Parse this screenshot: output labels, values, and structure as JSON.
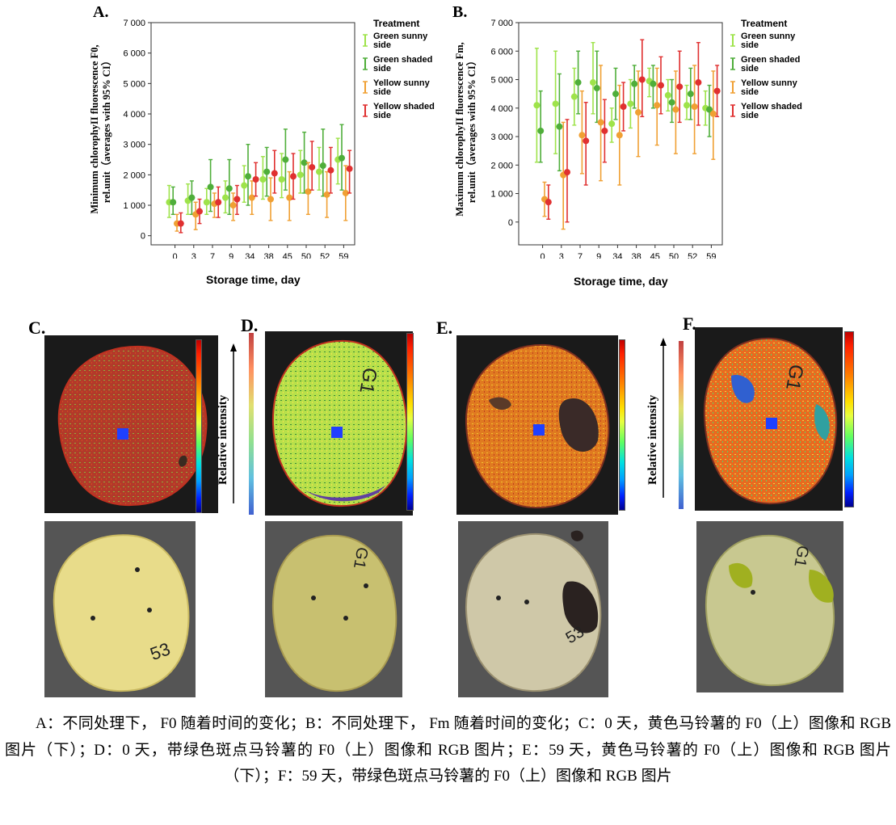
{
  "panel_labels": {
    "a": "A.",
    "b": "B.",
    "c": "C.",
    "d": "D.",
    "e": "E.",
    "f": "F."
  },
  "side_label": "Relative intensity",
  "chart_data": [
    {
      "type": "scatter",
      "panel": "A.",
      "ylabel_line1": "Minimum chlorophyII fluorescence F0,",
      "ylabel_line2": "rel.unit（averages with 95% CI）",
      "xlabel": "Storage time, day",
      "categories": [
        "0",
        "3",
        "7",
        "9",
        "34",
        "38",
        "45",
        "50",
        "52",
        "59"
      ],
      "yticks": [
        "0",
        "1 000",
        "2 000",
        "3 000",
        "4 000",
        "5 000",
        "6 000",
        "7 000"
      ],
      "ylim": [
        -300,
        7000
      ],
      "legend_title": "Treatment",
      "series": [
        {
          "name": "Green sunny side",
          "color": "#9ee34a",
          "values": [
            1100,
            1150,
            1100,
            1250,
            1650,
            1850,
            1850,
            2000,
            2100,
            2500
          ],
          "low": [
            600,
            700,
            700,
            750,
            1100,
            1200,
            1250,
            1400,
            1500,
            1700
          ],
          "high": [
            1650,
            1700,
            1550,
            1800,
            2300,
            2600,
            2700,
            2800,
            2900,
            3200
          ]
        },
        {
          "name": "Green shaded side",
          "color": "#4fae3a",
          "values": [
            1100,
            1250,
            1600,
            1550,
            1950,
            2100,
            2500,
            2400,
            2300,
            2550
          ],
          "low": [
            700,
            700,
            800,
            700,
            1000,
            1300,
            1500,
            1400,
            1300,
            1500
          ],
          "high": [
            1600,
            1800,
            2500,
            2500,
            3000,
            2900,
            3500,
            3400,
            3500,
            3650
          ]
        },
        {
          "name": "Yellow sunny side",
          "color": "#f0a033",
          "values": [
            400,
            700,
            1050,
            1000,
            1250,
            1200,
            1250,
            1450,
            1350,
            1400
          ],
          "low": [
            150,
            200,
            600,
            500,
            700,
            500,
            500,
            700,
            600,
            500
          ],
          "high": [
            700,
            1100,
            1400,
            1400,
            1800,
            1900,
            2100,
            2400,
            2100,
            2300
          ]
        },
        {
          "name": "Yellow shaded side",
          "color": "#e03030",
          "values": [
            400,
            800,
            1100,
            1200,
            1850,
            2050,
            1950,
            2250,
            2150,
            2200
          ],
          "low": [
            100,
            400,
            600,
            700,
            1300,
            1400,
            1200,
            1500,
            1400,
            1400
          ],
          "high": [
            750,
            1200,
            1600,
            1650,
            2400,
            2800,
            2700,
            3100,
            2900,
            2800
          ]
        }
      ]
    },
    {
      "type": "scatter",
      "panel": "B.",
      "ylabel_line1": "Maximum chlorophyII fluorescence Fm,",
      "ylabel_line2": "rel.unit（averages with 95% CI）",
      "xlabel": "Storage time, day",
      "categories": [
        "0",
        "3",
        "7",
        "9",
        "34",
        "38",
        "45",
        "50",
        "52",
        "59"
      ],
      "yticks": [
        "0",
        "1 000",
        "2 000",
        "3 000",
        "4 000",
        "5 000",
        "6 000",
        "7 000"
      ],
      "ylim": [
        -800,
        7000
      ],
      "legend_title": "Treatment",
      "series": [
        {
          "name": "Green sunny side",
          "color": "#9ee34a",
          "values": [
            4100,
            4150,
            4400,
            4900,
            3450,
            4150,
            4950,
            4450,
            4100,
            4000
          ],
          "low": [
            2100,
            2400,
            3400,
            3800,
            2800,
            3300,
            4400,
            3900,
            3600,
            3400
          ],
          "high": [
            6100,
            6000,
            5400,
            6300,
            4000,
            5000,
            5400,
            5000,
            4800,
            4600
          ]
        },
        {
          "name": "Green shaded side",
          "color": "#4fae3a",
          "values": [
            3200,
            3350,
            4900,
            4700,
            4500,
            4850,
            4850,
            4200,
            4500,
            3950
          ],
          "low": [
            2100,
            1800,
            3800,
            3500,
            3600,
            4000,
            4000,
            3500,
            3600,
            3000
          ],
          "high": [
            4600,
            5200,
            6000,
            6000,
            5400,
            5500,
            5500,
            5000,
            5400,
            4800
          ]
        },
        {
          "name": "Yellow sunny side",
          "color": "#f0a033",
          "values": [
            800,
            1650,
            3050,
            3500,
            3050,
            3850,
            4100,
            3950,
            4050,
            3800
          ],
          "low": [
            200,
            -250,
            1700,
            1450,
            1300,
            2300,
            2700,
            2400,
            2400,
            2200
          ],
          "high": [
            1400,
            3500,
            4600,
            5500,
            4800,
            5300,
            5400,
            5300,
            5500,
            5300
          ]
        },
        {
          "name": "Yellow shaded side",
          "color": "#e03030",
          "values": [
            700,
            1750,
            2850,
            3200,
            4050,
            5000,
            4800,
            4750,
            4900,
            4600
          ],
          "low": [
            100,
            0,
            1300,
            2100,
            3200,
            3700,
            3800,
            3500,
            3400,
            3700
          ],
          "high": [
            1300,
            3600,
            4200,
            4300,
            4900,
            6400,
            5800,
            6000,
            6300,
            5500
          ]
        }
      ]
    }
  ],
  "caption": "A：不同处理下， F0 随着时间的变化；B：不同处理下， Fm 随着时间的变化；C：0 天，黄色马铃薯的 F0（上）图像和 RGB 图片（下）；D：0 天，带绿色斑点马铃薯的 F0（上）图像和 RGB 图片；E：59 天，黄色马铃薯的 F0（上）图像和 RGB 图片（下）；F：59 天，带绿色斑点马铃薯的 F0（上）图像和 RGB 图片"
}
